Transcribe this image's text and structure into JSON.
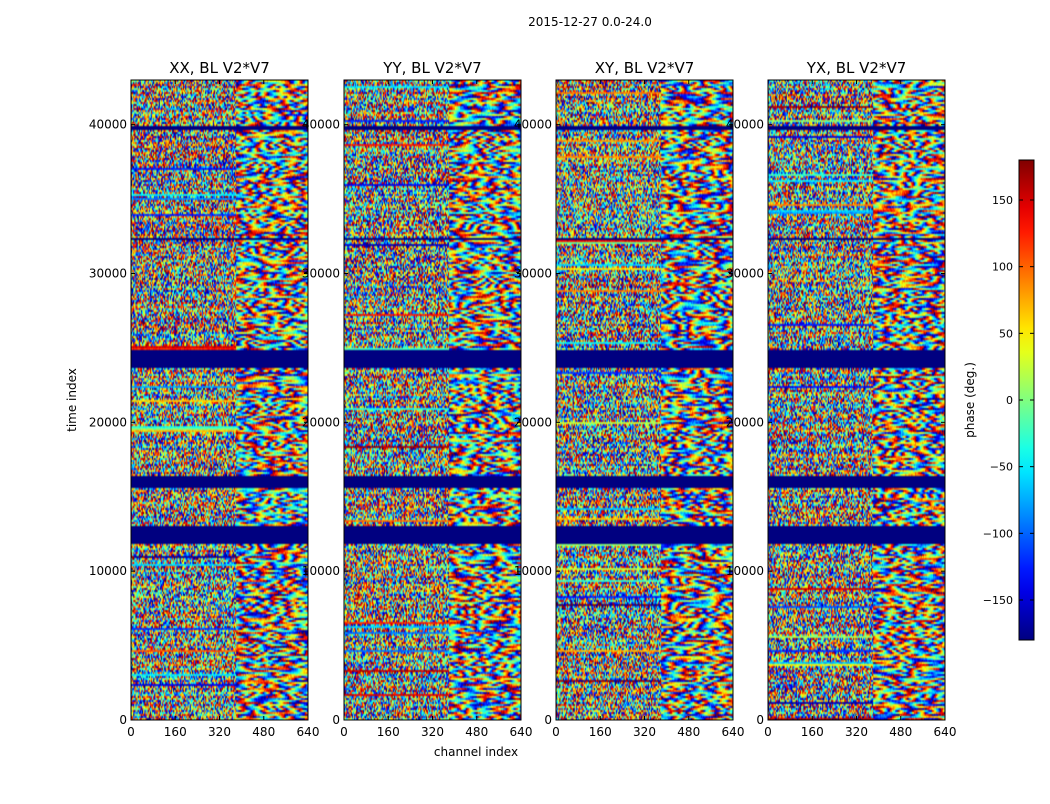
{
  "figure": {
    "suptitle": "2015-12-27 0.0-24.0",
    "colormap": "jet"
  },
  "chart_data": {
    "type": "heatmap",
    "suptitle": "2015-12-27 0.0-24.0",
    "xlabel": "channel index",
    "ylabel": "time index",
    "xlim": [
      0,
      640
    ],
    "ylim": [
      0,
      43000
    ],
    "xticks": [
      0,
      160,
      320,
      480,
      640
    ],
    "yticks": [
      0,
      10000,
      20000,
      30000,
      40000
    ],
    "panels": [
      {
        "name": "XX",
        "title": "XX, BL V2*V7"
      },
      {
        "name": "YY",
        "title": "YY, BL V2*V7"
      },
      {
        "name": "XY",
        "title": "XY, BL V2*V7"
      },
      {
        "name": "YX",
        "title": "YX, BL V2*V7"
      }
    ],
    "masked_time_ranges": [
      [
        11800,
        13100
      ],
      [
        15600,
        16400
      ],
      [
        23600,
        24800
      ],
      [
        32200,
        32400
      ],
      [
        39700,
        39900
      ]
    ],
    "colorbar": {
      "label": "phase (deg.)",
      "min": -180,
      "max": 180,
      "ticks": [
        -150,
        -100,
        -50,
        0,
        50,
        100,
        150
      ]
    }
  }
}
